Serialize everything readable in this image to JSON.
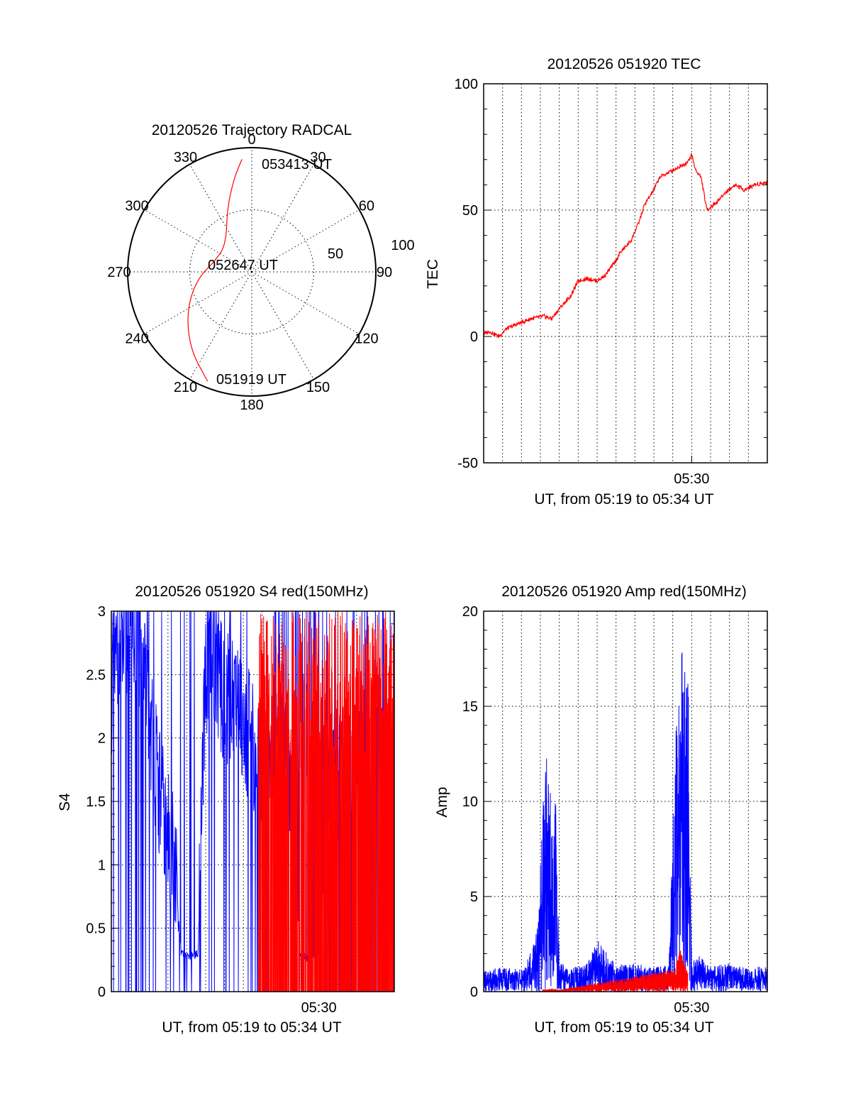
{
  "chart_data": [
    {
      "type": "polar",
      "title": "20120526 Trajectory RADCAL",
      "angle_labels": [
        "0",
        "30",
        "60",
        "90",
        "120",
        "150",
        "180",
        "210",
        "240",
        "270",
        "300",
        "330"
      ],
      "radius_labels": [
        "50",
        "100"
      ],
      "rlim": [
        0,
        100
      ],
      "angle_origin": "top",
      "angle_direction": "clockwise",
      "grid": true,
      "trajectory": {
        "color": "#ff0000",
        "points": [
          {
            "azimuth": 202,
            "elevation": 95
          },
          {
            "azimuth": 218,
            "elevation": 80
          },
          {
            "azimuth": 238,
            "elevation": 62
          },
          {
            "azimuth": 262,
            "elevation": 45
          },
          {
            "azimuth": 290,
            "elevation": 30
          },
          {
            "azimuth": 318,
            "elevation": 31
          },
          {
            "azimuth": 339,
            "elevation": 55
          },
          {
            "azimuth": 349,
            "elevation": 76
          },
          {
            "azimuth": 355,
            "elevation": 91
          }
        ],
        "labels": [
          "051919 UT",
          "052647 UT",
          "053413 UT"
        ]
      }
    },
    {
      "type": "line",
      "title": "20120526 051920 TEC",
      "xlabel": "UT, from 05:19 to 05:34 UT",
      "ylabel": "TEC",
      "xlim": [
        0,
        15
      ],
      "ylim": [
        -50,
        100
      ],
      "yticks": [
        "-50",
        "0",
        "50",
        "100"
      ],
      "xtick_label": "05:30",
      "xtick_at": 11,
      "grid": true,
      "series": [
        {
          "color": "#ff0000",
          "x": [
            0,
            0.3,
            0.8,
            1.2,
            1.8,
            2.5,
            3.2,
            3.6,
            4.0,
            4.6,
            5.0,
            5.5,
            6.0,
            6.4,
            7.0,
            7.2,
            7.8,
            8.2,
            8.5,
            9.0,
            9.3,
            9.8,
            10.3,
            10.8,
            11.0,
            11.2,
            11.5,
            11.8,
            12.3,
            12.8,
            13.3,
            13.8,
            14.3,
            15.0
          ],
          "y": [
            1,
            2,
            0,
            3,
            5,
            7,
            8,
            7,
            11,
            16,
            22,
            23,
            22,
            24,
            30,
            33,
            38,
            45,
            52,
            58,
            63,
            65,
            67,
            69,
            72,
            66,
            63,
            50,
            53,
            57,
            60,
            58,
            60,
            61
          ]
        }
      ]
    },
    {
      "type": "line",
      "title": "20120526 051920 S4 red(150MHz)",
      "xlabel": "UT, from 05:19 to 05:34 UT",
      "ylabel": "S4",
      "xlim": [
        0,
        15
      ],
      "ylim": [
        0,
        3
      ],
      "yticks": [
        "0",
        "0.5",
        "1",
        "1.5",
        "2",
        "2.5",
        "3"
      ],
      "xtick_label": "05:30",
      "xtick_at": 11,
      "grid": true,
      "series": [
        {
          "color": "#0000ff",
          "x": [
            0,
            0.5,
            1.0,
            1.5,
            2.0,
            2.5,
            3.0,
            3.3,
            3.7,
            4.2,
            4.6,
            5.0,
            5.5,
            6.0,
            6.5,
            7.0,
            7.5,
            8.0,
            8.5,
            9.0,
            9.5,
            10.0,
            10.5,
            11.0,
            11.5,
            12.0,
            12.5,
            13.0,
            13.5,
            14.0,
            14.5,
            15.0
          ],
          "y": [
            2.4,
            2.7,
            2.8,
            2.6,
            2.2,
            1.6,
            1.2,
            1.1,
            0.3,
            0.28,
            0.3,
            2.5,
            2.6,
            2.3,
            2.4,
            2.2,
            1.9,
            1.8,
            2.0,
            1.9,
            1.6,
            0.3,
            0.25,
            0.3,
            1.8,
            1.7,
            1.9,
            1.8,
            1.7,
            1.9,
            1.8,
            1.7
          ]
        },
        {
          "color": "#ff0000",
          "x": [
            7.8,
            8.4,
            9.0,
            9.4,
            10.0,
            11.0,
            11.6,
            12.2,
            12.8,
            13.4,
            14.0,
            14.6,
            15.0
          ],
          "y": [
            2.6,
            1.8,
            2.8,
            1.2,
            0.9,
            1.9,
            2.5,
            2.0,
            1.4,
            2.2,
            1.6,
            1.9,
            1.4
          ]
        }
      ]
    },
    {
      "type": "line",
      "title": "20120526 051920 Amp red(150MHz)",
      "xlabel": "UT, from 05:19 to 05:34 UT",
      "ylabel": "Amp",
      "xlim": [
        0,
        15
      ],
      "ylim": [
        0,
        20
      ],
      "yticks": [
        "0",
        "5",
        "10",
        "15",
        "20"
      ],
      "xtick_label": "05:30",
      "xtick_at": 11,
      "grid": true,
      "series": [
        {
          "color": "#0000ff",
          "x": [
            0,
            1.0,
            2.0,
            2.6,
            2.9,
            3.1,
            3.3,
            3.5,
            3.8,
            4.0,
            4.5,
            5.5,
            6.0,
            7.0,
            8.0,
            9.0,
            9.8,
            10.2,
            10.5,
            10.8,
            11.0,
            11.3,
            12.0,
            13.0,
            14.0,
            15.0
          ],
          "y": [
            1.1,
            1.3,
            1.2,
            2.5,
            4.0,
            9.5,
            12.5,
            11.0,
            10.5,
            1.6,
            1.2,
            1.5,
            2.8,
            1.4,
            1.5,
            1.3,
            1.5,
            15.5,
            18.8,
            17.5,
            1.5,
            2.0,
            1.3,
            1.5,
            1.2,
            1.4
          ]
        },
        {
          "color": "#ff0000",
          "x": [
            3.1,
            3.6,
            4.0,
            10.1,
            10.4,
            10.8
          ],
          "y": [
            0.1,
            0.15,
            0.1,
            1.2,
            2.3,
            1.0
          ]
        }
      ]
    }
  ]
}
